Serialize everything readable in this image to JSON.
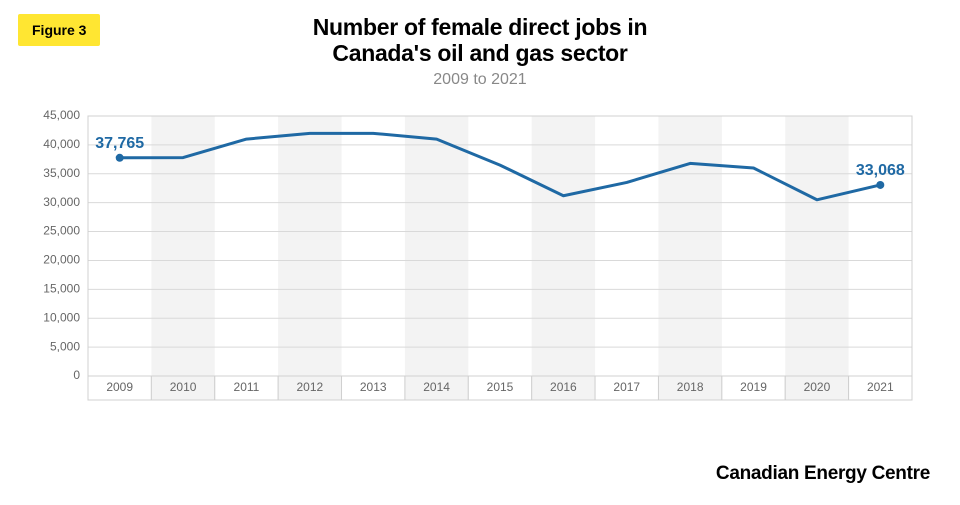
{
  "badge": {
    "label": "Figure 3"
  },
  "title": {
    "line1": "Number of female direct jobs in",
    "line2": "Canada's oil and gas sector",
    "subtitle": "2009 to 2021"
  },
  "chart": {
    "type": "line",
    "background_color": "#ffffff",
    "plot_border_color": "#d0d0d0",
    "grid_color": "#d9d9d9",
    "xband_fill": "#f3f3f3",
    "line_color": "#1f69a4",
    "line_width": 3,
    "marker_radius": 4,
    "axis_label_color": "#666666",
    "axis_label_fontsize": 12,
    "data_label_color": "#1f69a4",
    "data_label_fontsize": 16,
    "ylim": [
      0,
      45000
    ],
    "ytick_step": 5000,
    "yticks": [
      "0",
      "5,000",
      "10,000",
      "15,000",
      "20,000",
      "25,000",
      "30,000",
      "35,000",
      "40,000",
      "45,000"
    ],
    "categories": [
      "2009",
      "2010",
      "2011",
      "2012",
      "2013",
      "2014",
      "2015",
      "2016",
      "2017",
      "2018",
      "2019",
      "2020",
      "2021"
    ],
    "values": [
      37765,
      37800,
      41000,
      42000,
      42000,
      41000,
      36500,
      31200,
      33500,
      36800,
      36000,
      30500,
      33068
    ],
    "first_label": "37,765",
    "last_label": "33,068"
  },
  "source": "Canadian Energy Centre"
}
